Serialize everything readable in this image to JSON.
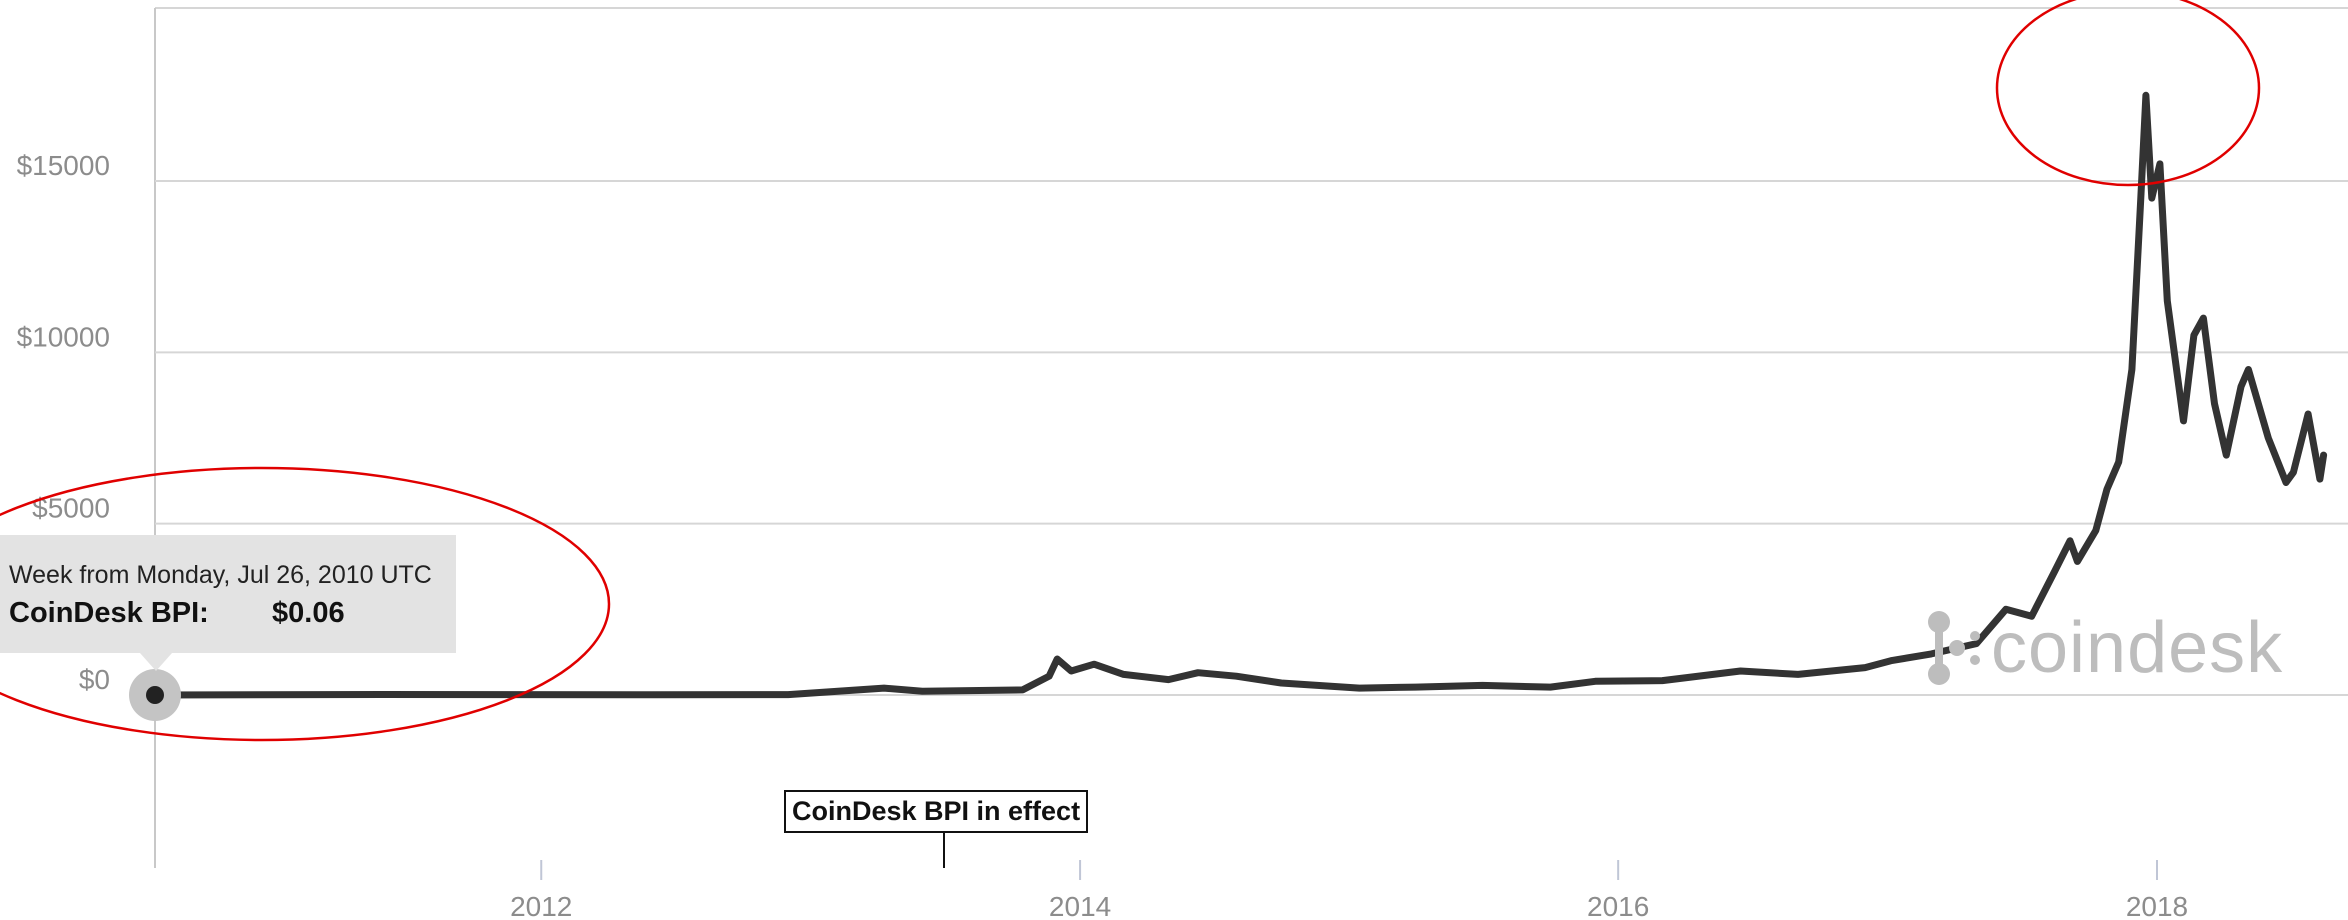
{
  "chart_data": {
    "type": "line",
    "ylabel": "",
    "xlabel": "",
    "y_ticks": [
      "$0",
      "$5000",
      "$10000",
      "$15000"
    ],
    "y_tick_values": [
      0,
      5000,
      10000,
      15000
    ],
    "ylim": [
      -5000,
      19800
    ],
    "x_ticks": [
      "2012",
      "2014",
      "2016",
      "2018"
    ],
    "x_tick_values": [
      "2012-01-01",
      "2014-01-01",
      "2016-01-01",
      "2018-01-01"
    ],
    "xlim": [
      "2010-07-26",
      "2018-08-15"
    ],
    "grid": true,
    "line_color": "#333333",
    "series": [
      {
        "points": [
          [
            "2010-07-26",
            0.06
          ],
          [
            "2011-06-01",
            15
          ],
          [
            "2012-06-01",
            7
          ],
          [
            "2012-12-01",
            13
          ],
          [
            "2013-04-10",
            200
          ],
          [
            "2013-06-01",
            110
          ],
          [
            "2013-10-15",
            150
          ],
          [
            "2013-11-20",
            550
          ],
          [
            "2013-12-01",
            1050
          ],
          [
            "2013-12-20",
            700
          ],
          [
            "2014-01-20",
            900
          ],
          [
            "2014-03-01",
            600
          ],
          [
            "2014-05-01",
            450
          ],
          [
            "2014-06-10",
            650
          ],
          [
            "2014-08-01",
            550
          ],
          [
            "2014-10-01",
            350
          ],
          [
            "2015-01-15",
            200
          ],
          [
            "2015-04-01",
            230
          ],
          [
            "2015-07-01",
            280
          ],
          [
            "2015-10-01",
            230
          ],
          [
            "2015-12-01",
            400
          ],
          [
            "2016-03-01",
            420
          ],
          [
            "2016-06-15",
            700
          ],
          [
            "2016-09-01",
            600
          ],
          [
            "2016-12-01",
            800
          ],
          [
            "2017-01-05",
            1000
          ],
          [
            "2017-03-01",
            1200
          ],
          [
            "2017-05-01",
            1500
          ],
          [
            "2017-06-10",
            2500
          ],
          [
            "2017-07-15",
            2300
          ],
          [
            "2017-08-15",
            3600
          ],
          [
            "2017-09-05",
            4500
          ],
          [
            "2017-09-15",
            3900
          ],
          [
            "2017-10-10",
            4800
          ],
          [
            "2017-10-25",
            6000
          ],
          [
            "2017-11-10",
            6800
          ],
          [
            "2017-11-28",
            9500
          ],
          [
            "2017-12-10",
            14500
          ],
          [
            "2017-12-17",
            17500
          ],
          [
            "2017-12-25",
            14500
          ],
          [
            "2018-01-05",
            15500
          ],
          [
            "2018-01-15",
            11500
          ],
          [
            "2018-02-06",
            8000
          ],
          [
            "2018-02-20",
            10500
          ],
          [
            "2018-03-05",
            11000
          ],
          [
            "2018-03-20",
            8500
          ],
          [
            "2018-04-05",
            7000
          ],
          [
            "2018-04-25",
            9000
          ],
          [
            "2018-05-05",
            9500
          ],
          [
            "2018-06-01",
            7500
          ],
          [
            "2018-06-25",
            6200
          ],
          [
            "2018-07-05",
            6500
          ],
          [
            "2018-07-25",
            8200
          ],
          [
            "2018-08-10",
            6300
          ],
          [
            "2018-08-15",
            7000
          ]
        ]
      }
    ],
    "tooltip": {
      "line1": "Week from Monday, Jul 26, 2010 UTC",
      "label": "CoinDesk BPI:",
      "value": "$0.06",
      "date": "2010-07-26",
      "y": 0.06
    },
    "annotation": {
      "text": "CoinDesk BPI in effect",
      "date": "2013-07-01"
    },
    "watermark": "coindesk",
    "highlight_color": "#e00000"
  }
}
